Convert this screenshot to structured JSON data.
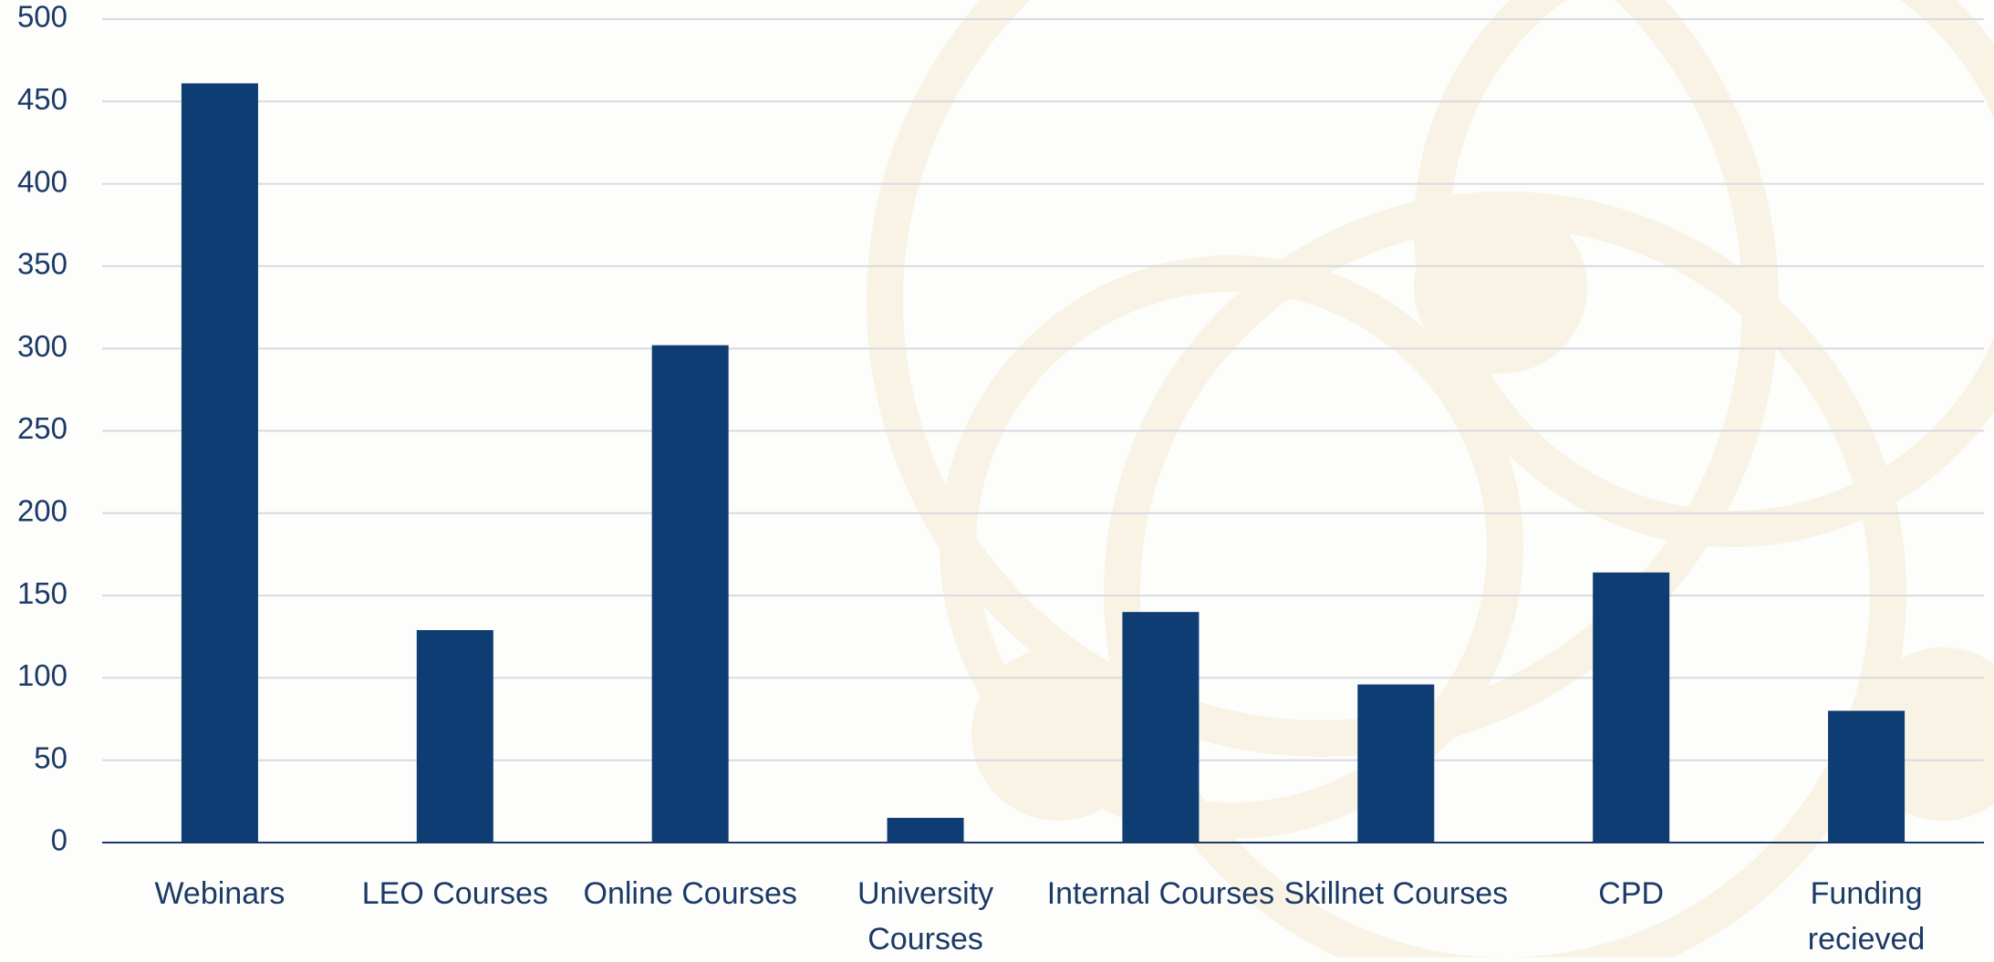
{
  "chart_data": {
    "type": "bar",
    "categories": [
      "Webinars",
      "LEO Courses",
      "Online Courses",
      "University Courses",
      "Internal Courses",
      "Skillnet Courses",
      "CPD",
      "Funding recieved"
    ],
    "values": [
      461,
      129,
      302,
      15,
      140,
      96,
      164,
      80
    ],
    "color": "#0e3d73",
    "ylim": [
      0,
      500
    ],
    "yticks": [
      0,
      50,
      100,
      150,
      200,
      250,
      300,
      350,
      400,
      450,
      500
    ],
    "grid": true
  }
}
